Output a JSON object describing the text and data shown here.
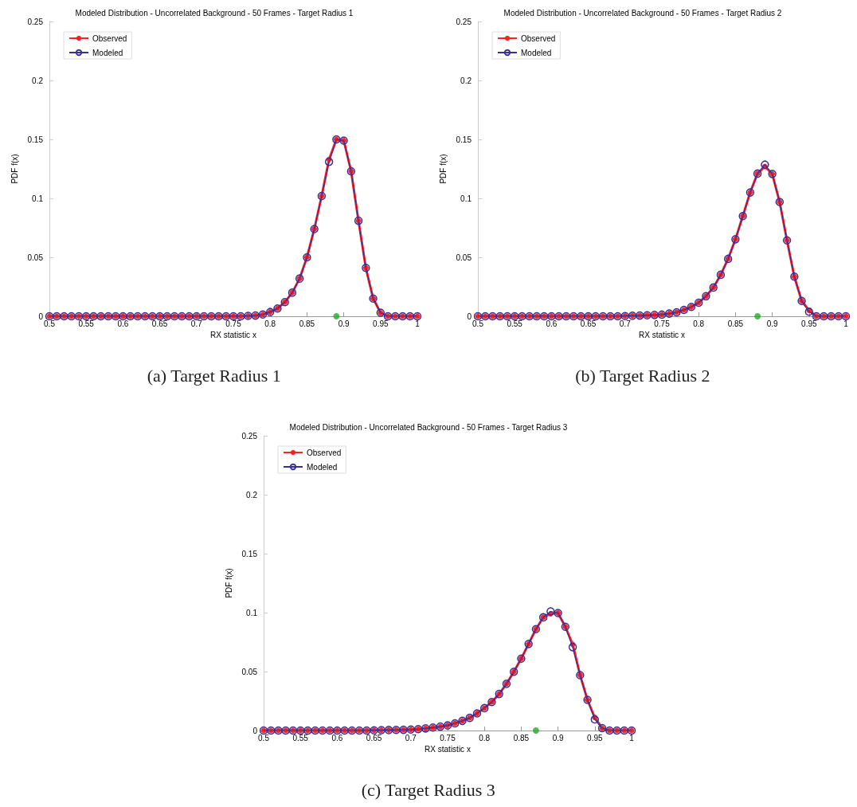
{
  "chart_data": [
    {
      "type": "line",
      "title": "Modeled Distribution - Uncorrelated Background - 50 Frames - Target Radius 1",
      "xlabel": "RX statistic x",
      "ylabel": "PDF f(x)",
      "annotations": [
        "(a) Target Radius 1"
      ],
      "x": [
        0.5,
        0.51,
        0.52,
        0.53,
        0.54,
        0.55,
        0.56,
        0.57,
        0.58,
        0.59,
        0.6,
        0.61,
        0.62,
        0.63,
        0.64,
        0.65,
        0.66,
        0.67,
        0.68,
        0.69,
        0.7,
        0.71,
        0.72,
        0.73,
        0.74,
        0.75,
        0.76,
        0.77,
        0.78,
        0.79,
        0.8,
        0.81,
        0.82,
        0.83,
        0.84,
        0.85,
        0.86,
        0.87,
        0.88,
        0.89,
        0.9,
        0.91,
        0.92,
        0.93,
        0.94,
        0.95,
        0.96,
        0.97,
        0.98,
        0.99,
        1
      ],
      "series": [
        {
          "name": "Observed",
          "color": "#ff2020",
          "values": [
            0,
            0,
            0,
            0,
            0,
            0,
            0,
            0,
            0,
            0,
            0,
            0,
            0,
            0,
            0,
            0,
            0,
            0,
            0,
            0,
            0,
            0,
            0,
            0,
            0,
            0,
            0,
            0.0003,
            0.0006,
            0.0015,
            0.0036,
            0.0066,
            0.012,
            0.02,
            0.032,
            0.05,
            0.074,
            0.102,
            0.133,
            0.15,
            0.149,
            0.123,
            0.081,
            0.041,
            0.015,
            0.003,
            0,
            0,
            0,
            0,
            0
          ]
        },
        {
          "name": "Modeled",
          "color": "#3a2f96",
          "values": [
            0,
            0,
            0,
            0,
            0,
            0,
            0,
            0,
            0,
            0,
            0,
            0,
            0,
            0,
            0,
            0,
            0,
            0,
            0,
            0,
            0,
            0,
            0,
            0,
            0,
            0,
            0,
            0.0003,
            0.0006,
            0.0015,
            0.0036,
            0.0066,
            0.012,
            0.02,
            0.032,
            0.05,
            0.074,
            0.102,
            0.131,
            0.15,
            0.149,
            0.123,
            0.081,
            0.041,
            0.015,
            0.003,
            0,
            0,
            0,
            0,
            0
          ]
        },
        {
          "type": "scatter",
          "color": "#22aa22",
          "x": [
            0.89
          ],
          "values": [
            0
          ]
        }
      ],
      "xlim": [
        0.5,
        1
      ],
      "xticks": [
        0.5,
        0.55,
        0.6,
        0.65,
        0.7,
        0.75,
        0.8,
        0.85,
        0.9,
        0.95,
        1
      ],
      "ylim": [
        0,
        0.25
      ],
      "yticks": [
        0,
        0.05,
        0.1,
        0.15,
        0.2,
        0.25
      ],
      "grid": false,
      "legend": "top left",
      "marker": "circle"
    },
    {
      "type": "line",
      "title": "Modeled Distribution - Uncorrelated Background - 50 Frames - Target Radius 2",
      "xlabel": "RX statistic x",
      "ylabel": "PDF f(x)",
      "annotations": [
        "(b) Target Radius 2"
      ],
      "x": [
        0.5,
        0.51,
        0.52,
        0.53,
        0.54,
        0.55,
        0.56,
        0.57,
        0.58,
        0.59,
        0.6,
        0.61,
        0.62,
        0.63,
        0.64,
        0.65,
        0.66,
        0.67,
        0.68,
        0.69,
        0.7,
        0.71,
        0.72,
        0.73,
        0.74,
        0.75,
        0.76,
        0.77,
        0.78,
        0.79,
        0.8,
        0.81,
        0.82,
        0.83,
        0.84,
        0.85,
        0.86,
        0.87,
        0.88,
        0.89,
        0.9,
        0.91,
        0.92,
        0.93,
        0.94,
        0.95,
        0.96,
        0.97,
        0.98,
        0.99,
        1
      ],
      "series": [
        {
          "name": "Observed",
          "color": "#ff2020",
          "values": [
            0,
            0,
            0,
            0,
            0,
            0,
            0,
            0,
            0,
            0,
            0,
            0,
            0,
            0,
            0,
            0,
            0,
            0,
            0,
            0,
            0.0002,
            0.0004,
            0.0006,
            0.0008,
            0.0011,
            0.0014,
            0.0023,
            0.0034,
            0.0054,
            0.0079,
            0.0115,
            0.017,
            0.0244,
            0.0352,
            0.0487,
            0.0653,
            0.085,
            0.105,
            0.121,
            0.127,
            0.1207,
            0.097,
            0.0644,
            0.0336,
            0.013,
            0.005,
            0,
            0,
            0,
            0,
            0
          ]
        },
        {
          "name": "Modeled",
          "color": "#3a2f96",
          "values": [
            0,
            0,
            0,
            0,
            0,
            0,
            0,
            0,
            0,
            0,
            0,
            0,
            0,
            0,
            0,
            0,
            0,
            0,
            0,
            0,
            0.0002,
            0.0004,
            0.0006,
            0.0008,
            0.0011,
            0.0014,
            0.0023,
            0.0034,
            0.0054,
            0.0079,
            0.0115,
            0.017,
            0.0244,
            0.0352,
            0.0487,
            0.0653,
            0.085,
            0.105,
            0.121,
            0.1286,
            0.1207,
            0.097,
            0.0644,
            0.0336,
            0.013,
            0.0039,
            0,
            0,
            0,
            0,
            0
          ]
        },
        {
          "type": "scatter",
          "color": "#22aa22",
          "x": [
            0.88
          ],
          "values": [
            0
          ]
        }
      ],
      "xlim": [
        0.5,
        1
      ],
      "xticks": [
        0.5,
        0.55,
        0.6,
        0.65,
        0.7,
        0.75,
        0.8,
        0.85,
        0.9,
        0.95,
        1
      ],
      "ylim": [
        0,
        0.25
      ],
      "yticks": [
        0,
        0.05,
        0.1,
        0.15,
        0.2,
        0.25
      ],
      "grid": false,
      "legend": "top left",
      "marker": "circle"
    },
    {
      "type": "line",
      "title": "Modeled Distribution - Uncorrelated Background - 50 Frames - Target Radius 3",
      "xlabel": "RX statistic x",
      "ylabel": "PDF f(x)",
      "annotations": [
        "(c) Target Radius 3"
      ],
      "x": [
        0.5,
        0.51,
        0.52,
        0.53,
        0.54,
        0.55,
        0.56,
        0.57,
        0.58,
        0.59,
        0.6,
        0.61,
        0.62,
        0.63,
        0.64,
        0.65,
        0.66,
        0.67,
        0.68,
        0.69,
        0.7,
        0.71,
        0.72,
        0.73,
        0.74,
        0.75,
        0.76,
        0.77,
        0.78,
        0.79,
        0.8,
        0.81,
        0.82,
        0.83,
        0.84,
        0.85,
        0.86,
        0.87,
        0.88,
        0.89,
        0.9,
        0.91,
        0.92,
        0.93,
        0.94,
        0.95,
        0.96,
        0.97,
        0.98,
        0.99,
        1
      ],
      "series": [
        {
          "name": "Observed",
          "color": "#ff2020",
          "values": [
            0,
            0,
            0,
            0,
            0,
            0,
            0,
            0,
            0,
            0,
            0,
            0,
            0,
            0,
            0,
            0.0002,
            0.0003,
            0.0004,
            0.0005,
            0.0006,
            0.0008,
            0.0012,
            0.0018,
            0.0025,
            0.0033,
            0.0043,
            0.0061,
            0.0082,
            0.0107,
            0.0145,
            0.019,
            0.0242,
            0.031,
            0.0396,
            0.0498,
            0.061,
            0.0734,
            0.086,
            0.096,
            0.099,
            0.0997,
            0.088,
            0.073,
            0.047,
            0.026,
            0.011,
            0.002,
            0,
            0,
            0,
            0
          ]
        },
        {
          "name": "Modeled",
          "color": "#3a2f96",
          "values": [
            0,
            0,
            0,
            0,
            0,
            0,
            0,
            0,
            0,
            0,
            0,
            0,
            0,
            0,
            0,
            0.0002,
            0.0003,
            0.0004,
            0.0005,
            0.0006,
            0.0008,
            0.0012,
            0.0018,
            0.0025,
            0.0033,
            0.0043,
            0.0061,
            0.0082,
            0.0107,
            0.0145,
            0.019,
            0.0242,
            0.031,
            0.0396,
            0.0498,
            0.061,
            0.0734,
            0.086,
            0.096,
            0.101,
            0.0997,
            0.088,
            0.0707,
            0.047,
            0.026,
            0.0095,
            0.002,
            0,
            0,
            0,
            0
          ]
        },
        {
          "type": "scatter",
          "color": "#22aa22",
          "x": [
            0.87
          ],
          "values": [
            0
          ]
        }
      ],
      "xlim": [
        0.5,
        1
      ],
      "xticks": [
        0.5,
        0.55,
        0.6,
        0.65,
        0.7,
        0.75,
        0.8,
        0.85,
        0.9,
        0.95,
        1
      ],
      "ylim": [
        0,
        0.25
      ],
      "yticks": [
        0,
        0.05,
        0.1,
        0.15,
        0.2,
        0.25
      ],
      "grid": false,
      "legend": "top left",
      "marker": "circle"
    }
  ]
}
